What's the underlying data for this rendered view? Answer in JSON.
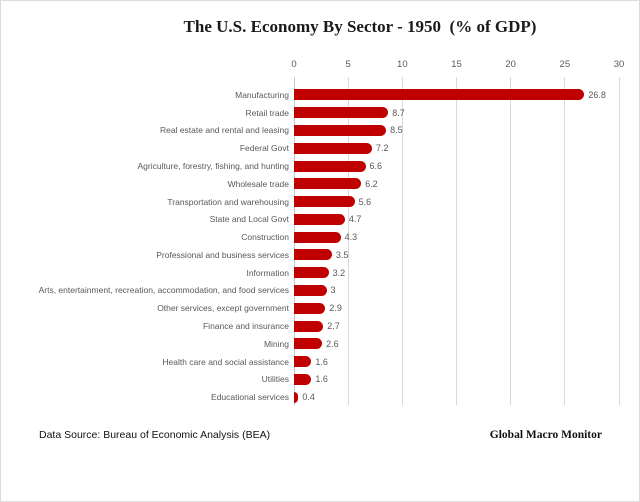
{
  "title": "The U.S. Economy By Sector - 1950  (% of GDP)",
  "footer": {
    "source": "Data Source: Bureau of Economic Analysis (BEA)",
    "brand": "Global Macro Monitor"
  },
  "chart_data": {
    "type": "bar",
    "orientation": "horizontal",
    "title": "The U.S. Economy By Sector - 1950  (% of GDP)",
    "categories": [
      "Manufacturing",
      "Retail trade",
      "Real estate and rental and leasing",
      "Federal Govt",
      "Agriculture, forestry, fishing, and hunting",
      "Wholesale trade",
      "Transportation and warehousing",
      "State and Local Govt",
      "Construction",
      "Professional and business services",
      "Information",
      "Arts, entertainment, recreation, accommodation, and food services",
      "Other services, except government",
      "Finance and insurance",
      "Mining",
      "Health care and social assistance",
      "Utilities",
      "Educational services"
    ],
    "values": [
      26.8,
      8.7,
      8.5,
      7.2,
      6.6,
      6.2,
      5.6,
      4.7,
      4.3,
      3.5,
      3.2,
      3,
      2.9,
      2.7,
      2.6,
      1.6,
      1.6,
      0.4
    ],
    "xlabel": "",
    "ylabel": "",
    "xlim": [
      0,
      30
    ],
    "xticks": [
      0,
      5,
      10,
      15,
      20,
      25,
      30
    ],
    "grid": true,
    "legend": false,
    "value_labels": true,
    "bar_color": "#c00000",
    "gridline_color": "#d9d9d9",
    "label_color": "#595959"
  }
}
